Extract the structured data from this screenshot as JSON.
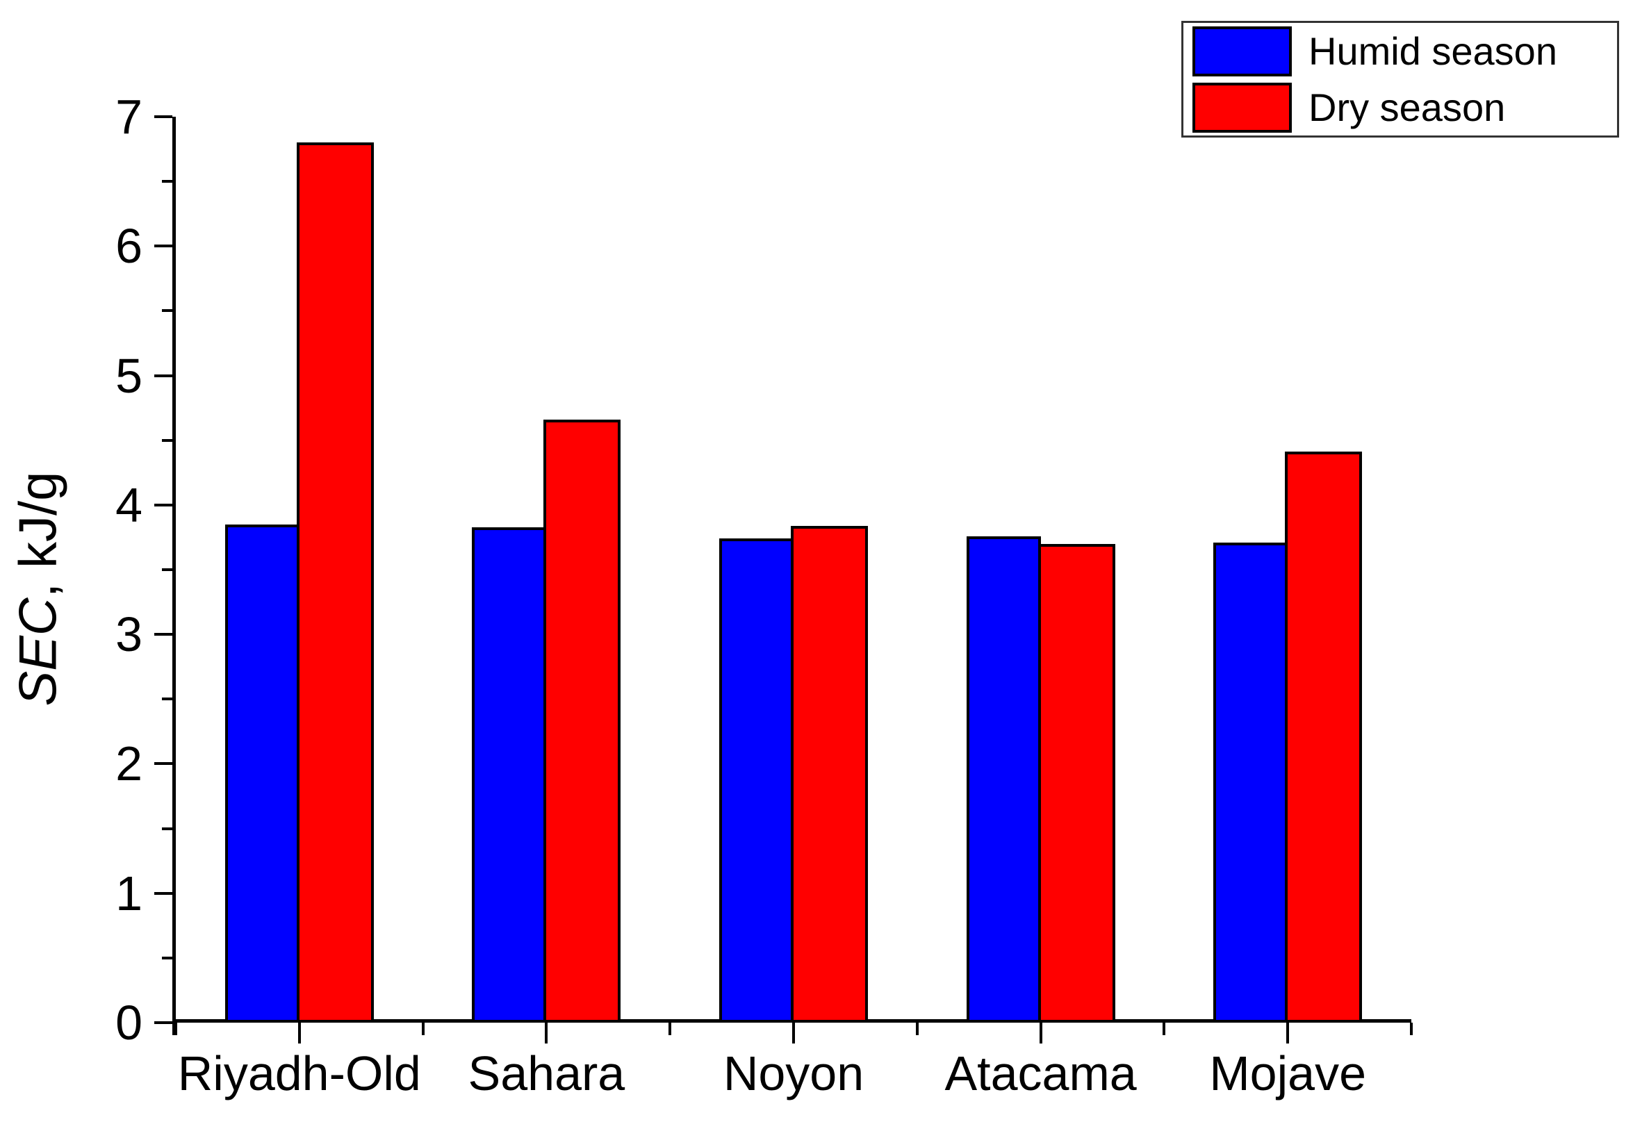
{
  "chart_data": {
    "type": "bar",
    "title": "",
    "categories": [
      "Riyadh-Old",
      "Sahara",
      "Noyon",
      "Atacama",
      "Mojave"
    ],
    "series": [
      {
        "name": "Humid season",
        "color": "#0000ff",
        "values": [
          3.85,
          3.83,
          3.74,
          3.76,
          3.71
        ]
      },
      {
        "name": "Dry season",
        "color": "#ff0000",
        "values": [
          6.8,
          4.66,
          3.84,
          3.7,
          4.41
        ]
      }
    ],
    "xlabel": "",
    "ylabel": "SEC, kJ/g",
    "ylabel_parts": {
      "italic": "SEC",
      "rest": ", kJ/g"
    },
    "ylim": [
      0,
      7
    ],
    "yticks_major": [
      0,
      1,
      2,
      3,
      4,
      5,
      6,
      7
    ],
    "yticks_minor": [
      0.5,
      1.5,
      2.5,
      3.5,
      4.5,
      5.5,
      6.5
    ],
    "grid": false,
    "legend_position": "top-right",
    "bar_edge_color": "#000000",
    "axis_color": "#000000",
    "background": "#ffffff"
  }
}
